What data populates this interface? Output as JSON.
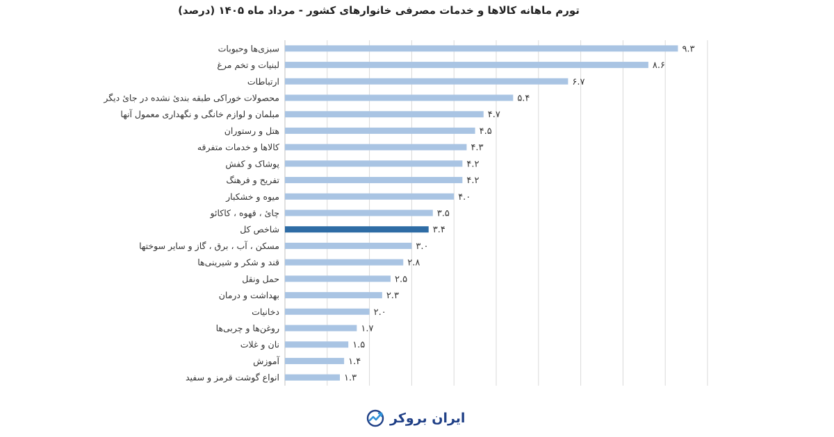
{
  "chart_data": {
    "type": "bar",
    "orientation": "horizontal",
    "title": "تورم ماهانه کالاها و خدمات مصرفی خانوارهای کشور - مرداد ماه ۱۴۰۵ (درصد)",
    "xlim": [
      0,
      10
    ],
    "grid": "vertical",
    "legend": "none",
    "colors": {
      "bar": "#a9c4e3",
      "highlight": "#2e6ca5",
      "grid": "#d9d9d9",
      "axis": "#bfbfbf"
    },
    "highlight_category": "شاخص کل",
    "categories": [
      "سبزی‌ها وحبوبات",
      "لبنیات و تخم مرغ",
      "ارتباطات",
      "محصولات خوراکی طبقه بندیٔ نشده در جایٔ دیگر",
      "مبلمان و لوازم خانگی و نگهداری معمول آنها",
      "هتل و رستوران",
      "کالاها و خدمات متفرقه",
      "پوشاک و کفش",
      "تفریح و فرهنگ",
      "میوه و خشکبار",
      "چایٔ ، قهوه ، کاکائو",
      "شاخص کل",
      "مسکن ، آب ، برق ، گاز و سایر سوختها",
      "قند و شکر و شیرینی‌ها",
      "حمل ونقل",
      "بهداشت و درمان",
      "دخانیات",
      "روغن‌ها و چربی‌ها",
      "نان و غلات",
      "آموزش",
      "انواع گوشت قرمز و سفید"
    ],
    "values": [
      9.3,
      8.6,
      6.7,
      5.4,
      4.7,
      4.5,
      4.3,
      4.2,
      4.2,
      4.0,
      3.5,
      3.4,
      3.0,
      2.8,
      2.5,
      2.3,
      2.0,
      1.7,
      1.5,
      1.4,
      1.3
    ],
    "value_labels": [
      "۹.۳",
      "۸.۶",
      "۶.۷",
      "۵.۴",
      "۴.۷",
      "۴.۵",
      "۴.۳",
      "۴.۲",
      "۴.۲",
      "۴.۰",
      "۳.۵",
      "۳.۴",
      "۳.۰",
      "۲.۸",
      "۲.۵",
      "۲.۳",
      "۲.۰",
      "۱.۷",
      "۱.۵",
      "۱.۴",
      "۱.۳"
    ]
  },
  "logo": {
    "text": "ایران بروکر",
    "icon": "chart-trend-icon"
  }
}
